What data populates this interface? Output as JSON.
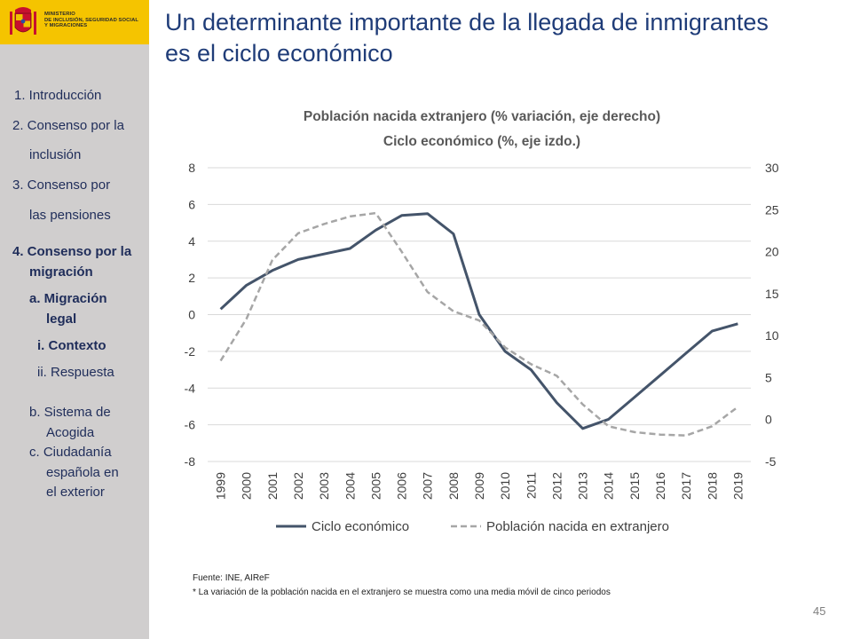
{
  "logo": {
    "ministry_lines": [
      "MINISTERIO",
      "DE INCLUSIÓN, SEGURIDAD SOCIAL",
      "Y MIGRACIONES"
    ],
    "colors": {
      "background": "#f5c400",
      "crest_red": "#c8102e"
    }
  },
  "sidebar": {
    "items": [
      {
        "label": "1. Introducción",
        "bold": false
      },
      {
        "label": "2. Consenso por la",
        "bold": false
      },
      {
        "label": "inclusión",
        "bold": false
      },
      {
        "label": "3. Consenso por",
        "bold": false
      },
      {
        "label": "las pensiones",
        "bold": false
      },
      {
        "label": "4. Consenso por la",
        "bold": true
      },
      {
        "label": "migración",
        "bold": true
      },
      {
        "label": "a. Migración",
        "bold": true
      },
      {
        "label": "legal",
        "bold": true
      },
      {
        "label": "i.  Contexto",
        "bold": true
      },
      {
        "label": "ii. Respuesta",
        "bold": false
      },
      {
        "label": "b. Sistema de",
        "bold": false
      },
      {
        "label": "Acogida",
        "bold": false
      },
      {
        "label": "c.  Ciudadanía",
        "bold": false
      },
      {
        "label": "española en",
        "bold": false
      },
      {
        "label": "el exterior",
        "bold": false
      }
    ]
  },
  "title": {
    "line1": "Un determinante importante de la llegada de inmigrantes",
    "line2": "es el ciclo económico"
  },
  "chart_data": {
    "type": "line",
    "title": [
      "Población nacida extranjero (% variación, eje derecho)",
      "Ciclo económico (%, eje izdo.)"
    ],
    "categories": [
      "1999",
      "2000",
      "2001",
      "2002",
      "2003",
      "2004",
      "2005",
      "2006",
      "2007",
      "2008",
      "2009",
      "2010",
      "2011",
      "2012",
      "2013",
      "2014",
      "2015",
      "2016",
      "2017",
      "2018",
      "2019"
    ],
    "y_left": {
      "min": -8,
      "max": 8,
      "step": 2,
      "ticks": [
        "8",
        "6",
        "4",
        "2",
        "0",
        "-2",
        "-4",
        "-6",
        "-8"
      ]
    },
    "y_right": {
      "min": -5,
      "max": 30,
      "step": 5,
      "ticks": [
        "30",
        "25",
        "20",
        "15",
        "10",
        "5",
        "0",
        "-5"
      ]
    },
    "series": [
      {
        "name": "Ciclo económico",
        "axis": "left",
        "style": "solid",
        "color": "#44546a",
        "values": [
          0.3,
          1.6,
          2.4,
          3.0,
          3.3,
          3.6,
          4.6,
          5.4,
          5.5,
          4.4,
          0.0,
          -2.0,
          -3.0,
          -4.8,
          -6.2,
          -5.7,
          -4.5,
          -3.3,
          -2.1,
          -0.9,
          -0.5
        ]
      },
      {
        "name": "Población nacida en extranjero",
        "axis": "right",
        "style": "dashed",
        "color": "#a6a6a6",
        "values": [
          7.0,
          12.0,
          19.0,
          22.2,
          23.3,
          24.2,
          24.6,
          20.0,
          15.2,
          12.9,
          11.8,
          8.6,
          6.6,
          5.2,
          1.8,
          -0.8,
          -1.5,
          -1.8,
          -1.9,
          -0.8,
          1.5
        ]
      }
    ],
    "legend": [
      "Ciclo económico",
      "Población nacida en extranjero"
    ],
    "legend_position": "bottom",
    "grid": true
  },
  "source": {
    "line1": "Fuente:  INE, AIReF",
    "line2": "* La variación de la población nacida en el extranjero se muestra como una media móvil de cinco periodos"
  },
  "page_number": "45"
}
